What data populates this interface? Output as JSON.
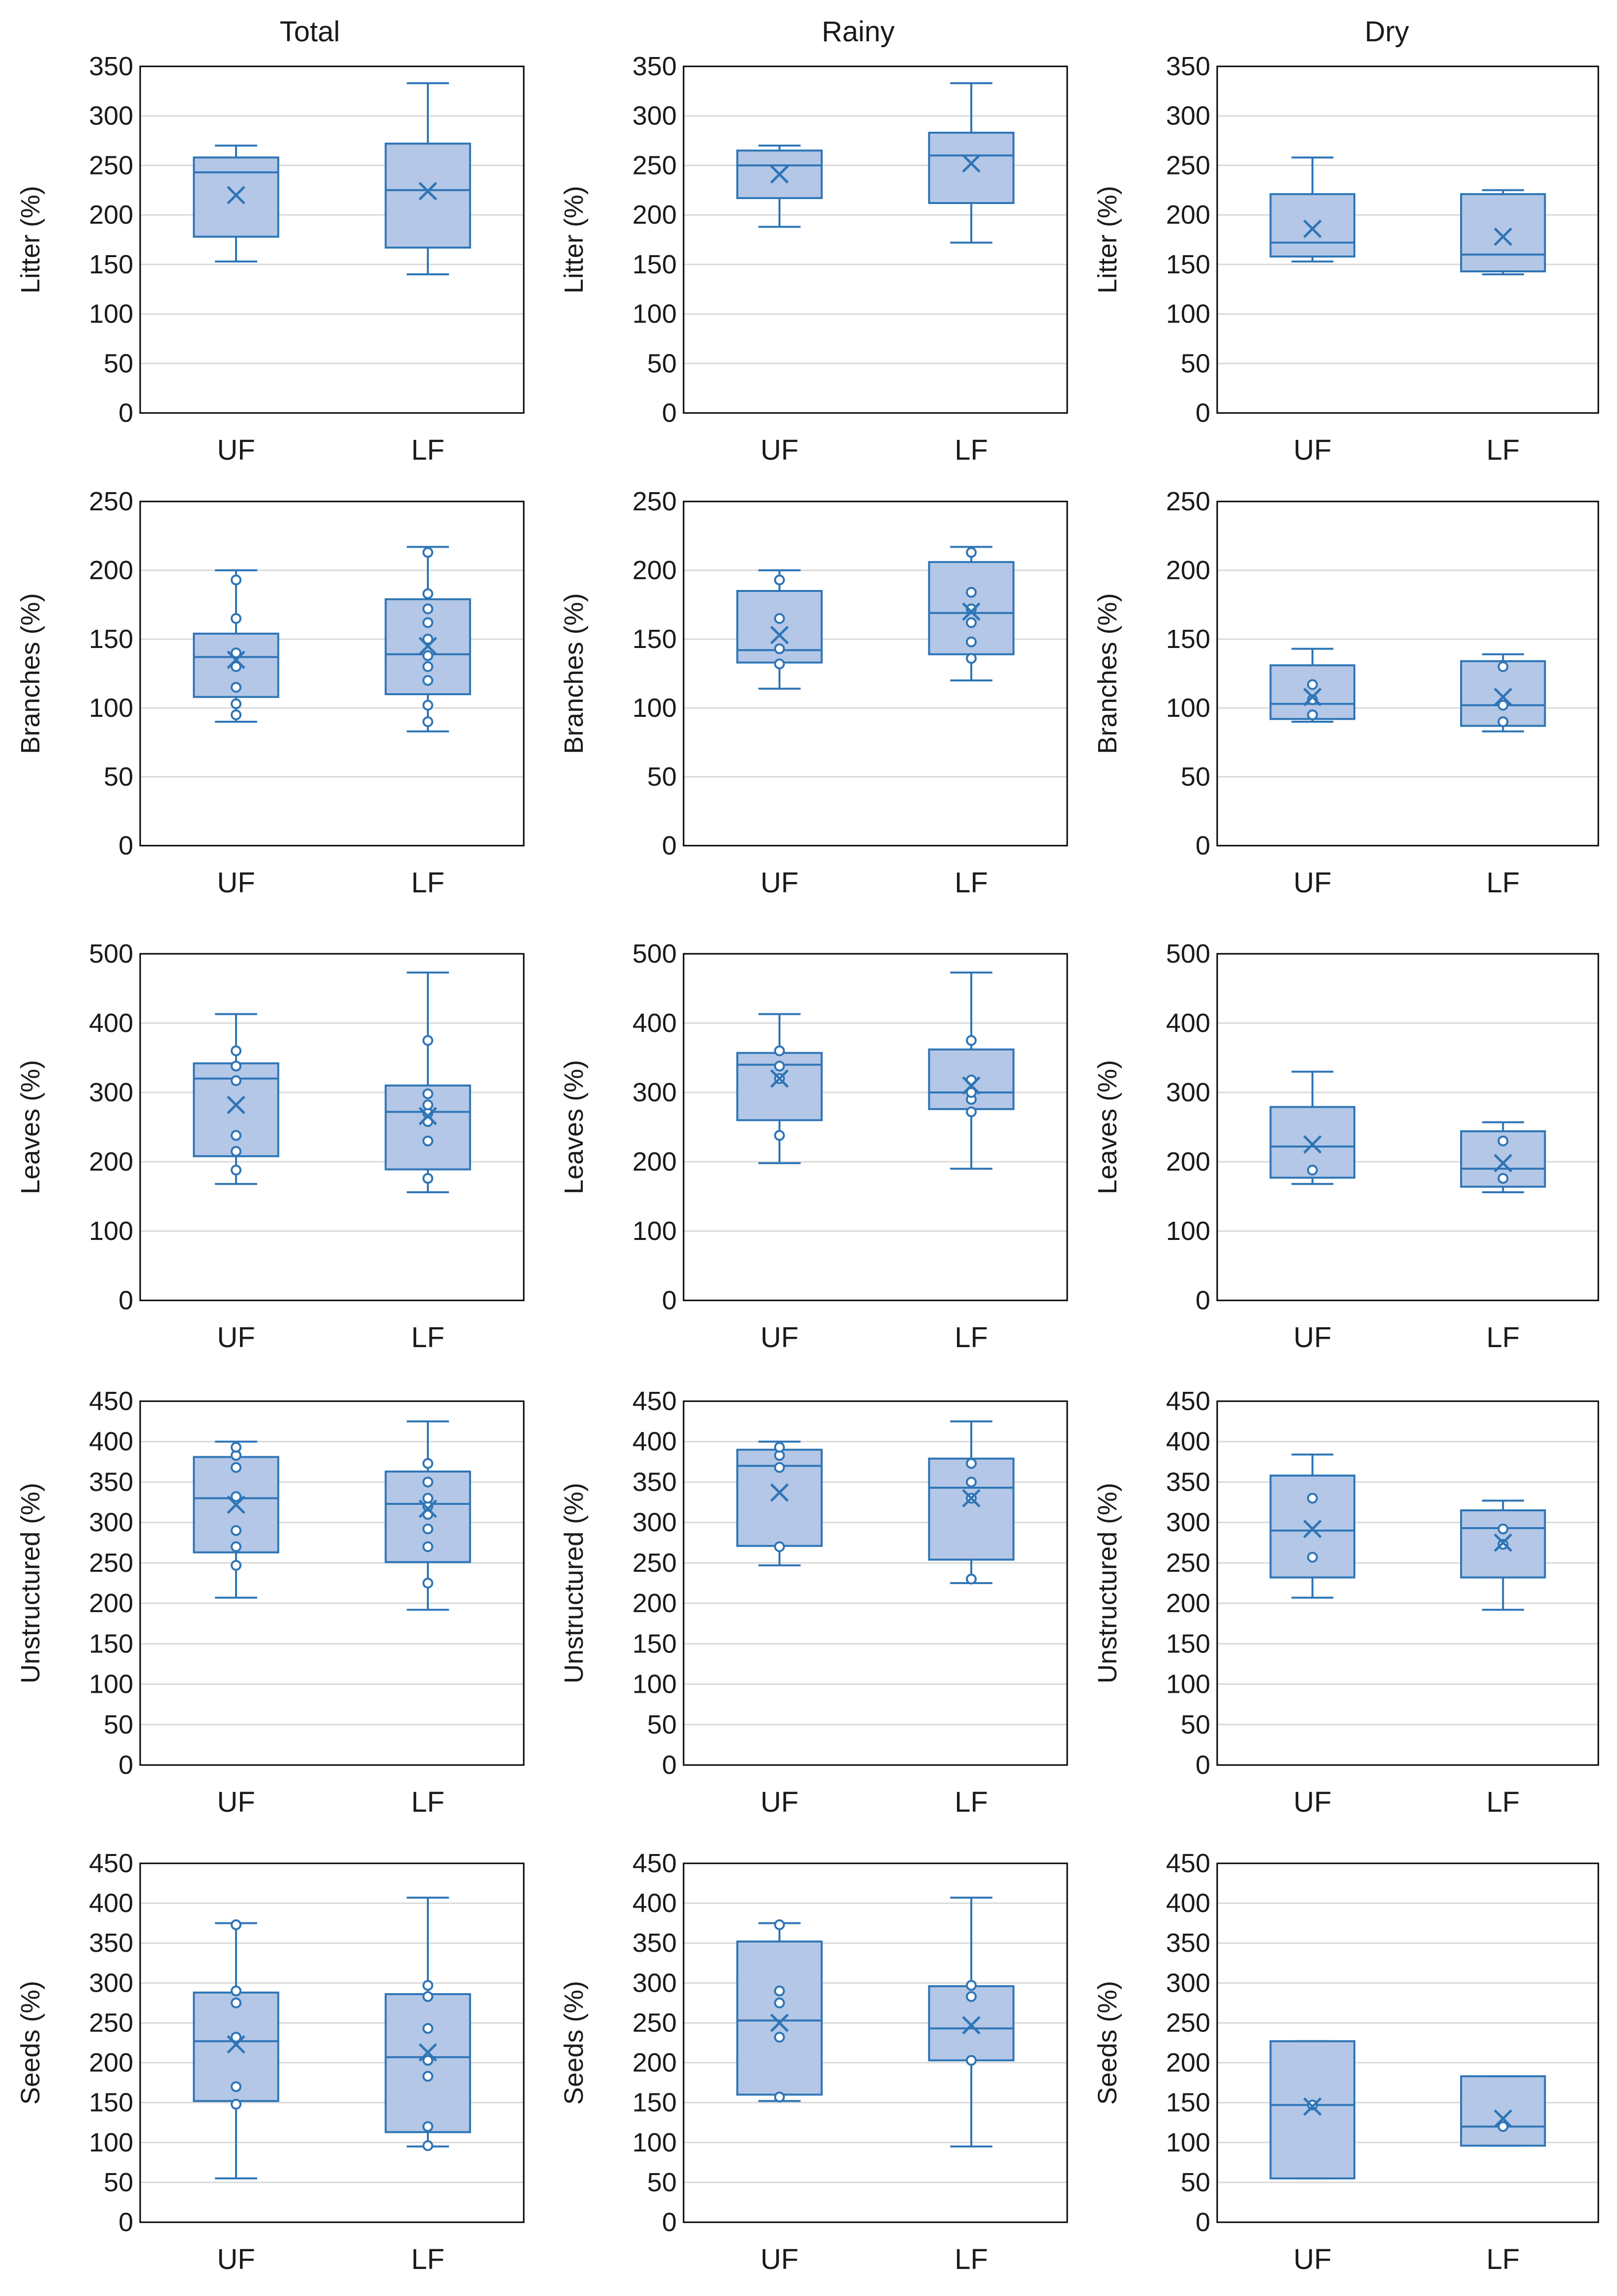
{
  "figure": {
    "column_titles": [
      "Total",
      "Rainy",
      "Dry"
    ],
    "categories": [
      "UF",
      "LF"
    ]
  },
  "colors": {
    "box_fill": "#b4c7e7",
    "box_stroke": "#2e75b6",
    "grid": "#d9d9d9",
    "frame": "#000000"
  },
  "chart_data": [
    {
      "type": "box",
      "row": "Litter",
      "column": "Total",
      "ylabel": "Litter (%)",
      "ylim": [
        0,
        350
      ],
      "step": 50,
      "categories": [
        "UF",
        "LF"
      ],
      "boxes": [
        {
          "min": 153,
          "q1": 178,
          "median": 243,
          "q3": 258,
          "max": 270,
          "mean": 220,
          "outliers": []
        },
        {
          "min": 140,
          "q1": 167,
          "median": 225,
          "q3": 272,
          "max": 333,
          "mean": 224,
          "outliers": []
        }
      ]
    },
    {
      "type": "box",
      "row": "Litter",
      "column": "Rainy",
      "ylabel": "Litter (%)",
      "ylim": [
        0,
        350
      ],
      "step": 50,
      "categories": [
        "UF",
        "LF"
      ],
      "boxes": [
        {
          "min": 188,
          "q1": 217,
          "median": 250,
          "q3": 265,
          "max": 270,
          "mean": 241,
          "outliers": []
        },
        {
          "min": 172,
          "q1": 212,
          "median": 260,
          "q3": 283,
          "max": 333,
          "mean": 252,
          "outliers": []
        }
      ]
    },
    {
      "type": "box",
      "row": "Litter",
      "column": "Dry",
      "ylabel": "Litter (%)",
      "ylim": [
        0,
        350
      ],
      "step": 50,
      "categories": [
        "UF",
        "LF"
      ],
      "boxes": [
        {
          "min": 153,
          "q1": 158,
          "median": 172,
          "q3": 221,
          "max": 258,
          "mean": 186,
          "outliers": []
        },
        {
          "min": 140,
          "q1": 143,
          "median": 160,
          "q3": 221,
          "max": 225,
          "mean": 178,
          "outliers": []
        }
      ]
    },
    {
      "type": "box",
      "row": "Branches",
      "column": "Total",
      "ylabel": "Branches (%)",
      "ylim": [
        0,
        250
      ],
      "step": 50,
      "categories": [
        "UF",
        "LF"
      ],
      "boxes": [
        {
          "min": 90,
          "q1": 108,
          "median": 137,
          "q3": 154,
          "max": 200,
          "mean": 135,
          "outliers": [
            95,
            103,
            115,
            130,
            140,
            165,
            193
          ]
        },
        {
          "min": 83,
          "q1": 110,
          "median": 139,
          "q3": 179,
          "max": 217,
          "mean": 145,
          "outliers": [
            90,
            102,
            120,
            130,
            138,
            150,
            162,
            172,
            183,
            213
          ]
        }
      ]
    },
    {
      "type": "box",
      "row": "Branches",
      "column": "Rainy",
      "ylabel": "Branches (%)",
      "ylim": [
        0,
        250
      ],
      "step": 50,
      "categories": [
        "UF",
        "LF"
      ],
      "boxes": [
        {
          "min": 114,
          "q1": 133,
          "median": 142,
          "q3": 185,
          "max": 200,
          "mean": 153,
          "outliers": [
            132,
            143,
            165,
            193
          ]
        },
        {
          "min": 120,
          "q1": 139,
          "median": 169,
          "q3": 206,
          "max": 217,
          "mean": 170,
          "outliers": [
            136,
            148,
            162,
            172,
            184,
            213
          ]
        }
      ]
    },
    {
      "type": "box",
      "row": "Branches",
      "column": "Dry",
      "ylabel": "Branches (%)",
      "ylim": [
        0,
        250
      ],
      "step": 50,
      "categories": [
        "UF",
        "LF"
      ],
      "boxes": [
        {
          "min": 90,
          "q1": 92,
          "median": 103,
          "q3": 131,
          "max": 143,
          "mean": 108,
          "outliers": [
            95,
            106,
            117
          ]
        },
        {
          "min": 83,
          "q1": 87,
          "median": 102,
          "q3": 134,
          "max": 139,
          "mean": 108,
          "outliers": [
            90,
            102,
            130
          ]
        }
      ]
    },
    {
      "type": "box",
      "row": "Leaves",
      "column": "Total",
      "ylabel": "Leaves (%)",
      "ylim": [
        0,
        500
      ],
      "step": 100,
      "categories": [
        "UF",
        "LF"
      ],
      "boxes": [
        {
          "min": 168,
          "q1": 208,
          "median": 320,
          "q3": 342,
          "max": 413,
          "mean": 282,
          "outliers": [
            188,
            215,
            238,
            317,
            338,
            360
          ]
        },
        {
          "min": 156,
          "q1": 189,
          "median": 272,
          "q3": 310,
          "max": 473,
          "mean": 266,
          "outliers": [
            176,
            230,
            258,
            270,
            282,
            298,
            375
          ]
        }
      ]
    },
    {
      "type": "box",
      "row": "Leaves",
      "column": "Rainy",
      "ylabel": "Leaves (%)",
      "ylim": [
        0,
        500
      ],
      "step": 100,
      "categories": [
        "UF",
        "LF"
      ],
      "boxes": [
        {
          "min": 198,
          "q1": 260,
          "median": 340,
          "q3": 357,
          "max": 413,
          "mean": 320,
          "outliers": [
            238,
            320,
            338,
            360
          ]
        },
        {
          "min": 190,
          "q1": 276,
          "median": 300,
          "q3": 362,
          "max": 473,
          "mean": 310,
          "outliers": [
            272,
            290,
            300,
            318,
            375
          ]
        }
      ]
    },
    {
      "type": "box",
      "row": "Leaves",
      "column": "Dry",
      "ylabel": "Leaves (%)",
      "ylim": [
        0,
        500
      ],
      "step": 100,
      "categories": [
        "UF",
        "LF"
      ],
      "boxes": [
        {
          "min": 168,
          "q1": 177,
          "median": 222,
          "q3": 279,
          "max": 330,
          "mean": 225,
          "outliers": [
            188
          ]
        },
        {
          "min": 156,
          "q1": 164,
          "median": 190,
          "q3": 244,
          "max": 257,
          "mean": 198,
          "outliers": [
            176,
            230
          ]
        }
      ]
    },
    {
      "type": "box",
      "row": "Unstructured",
      "column": "Total",
      "ylabel": "Unstructured (%)",
      "ylim": [
        0,
        450
      ],
      "step": 50,
      "categories": [
        "UF",
        "LF"
      ],
      "boxes": [
        {
          "min": 207,
          "q1": 263,
          "median": 330,
          "q3": 381,
          "max": 400,
          "mean": 322,
          "outliers": [
            247,
            270,
            290,
            332,
            368,
            383,
            393
          ]
        },
        {
          "min": 192,
          "q1": 251,
          "median": 323,
          "q3": 363,
          "max": 425,
          "mean": 317,
          "outliers": [
            225,
            270,
            292,
            310,
            320,
            330,
            350,
            373
          ]
        }
      ]
    },
    {
      "type": "box",
      "row": "Unstructured",
      "column": "Rainy",
      "ylabel": "Unstructured (%)",
      "ylim": [
        0,
        450
      ],
      "step": 50,
      "categories": [
        "UF",
        "LF"
      ],
      "boxes": [
        {
          "min": 247,
          "q1": 271,
          "median": 370,
          "q3": 390,
          "max": 400,
          "mean": 337,
          "outliers": [
            270,
            368,
            383,
            393
          ]
        },
        {
          "min": 225,
          "q1": 254,
          "median": 343,
          "q3": 379,
          "max": 425,
          "mean": 330,
          "outliers": [
            230,
            330,
            350,
            373
          ]
        }
      ]
    },
    {
      "type": "box",
      "row": "Unstructured",
      "column": "Dry",
      "ylabel": "Unstructured (%)",
      "ylim": [
        0,
        450
      ],
      "step": 50,
      "categories": [
        "UF",
        "LF"
      ],
      "boxes": [
        {
          "min": 207,
          "q1": 232,
          "median": 290,
          "q3": 358,
          "max": 384,
          "mean": 292,
          "outliers": [
            257,
            330
          ]
        },
        {
          "min": 192,
          "q1": 232,
          "median": 293,
          "q3": 315,
          "max": 327,
          "mean": 275,
          "outliers": [
            273,
            292
          ]
        }
      ]
    },
    {
      "type": "box",
      "row": "Seeds",
      "column": "Total",
      "ylabel": "Seeds (%)",
      "ylim": [
        0,
        450
      ],
      "step": 50,
      "categories": [
        "UF",
        "LF"
      ],
      "boxes": [
        {
          "min": 55,
          "q1": 152,
          "median": 227,
          "q3": 288,
          "max": 375,
          "mean": 223,
          "outliers": [
            148,
            170,
            232,
            275,
            290,
            373
          ]
        },
        {
          "min": 95,
          "q1": 113,
          "median": 207,
          "q3": 286,
          "max": 407,
          "mean": 213,
          "outliers": [
            96,
            120,
            183,
            203,
            243,
            283,
            297
          ]
        }
      ]
    },
    {
      "type": "box",
      "row": "Seeds",
      "column": "Rainy",
      "ylabel": "Seeds (%)",
      "ylim": [
        0,
        450
      ],
      "step": 50,
      "categories": [
        "UF",
        "LF"
      ],
      "boxes": [
        {
          "min": 152,
          "q1": 160,
          "median": 253,
          "q3": 352,
          "max": 375,
          "mean": 250,
          "outliers": [
            157,
            232,
            275,
            290,
            373
          ]
        },
        {
          "min": 95,
          "q1": 203,
          "median": 243,
          "q3": 296,
          "max": 407,
          "mean": 247,
          "outliers": [
            203,
            283,
            297
          ]
        }
      ]
    },
    {
      "type": "box",
      "row": "Seeds",
      "column": "Dry",
      "ylabel": "Seeds (%)",
      "ylim": [
        0,
        450
      ],
      "step": 50,
      "categories": [
        "UF",
        "LF"
      ],
      "boxes": [
        {
          "min": 55,
          "q1": 55,
          "median": 147,
          "q3": 227,
          "max": 227,
          "mean": 145,
          "outliers": [
            147
          ]
        },
        {
          "min": 96,
          "q1": 96,
          "median": 120,
          "q3": 183,
          "max": 183,
          "mean": 130,
          "outliers": [
            120
          ]
        }
      ]
    }
  ]
}
